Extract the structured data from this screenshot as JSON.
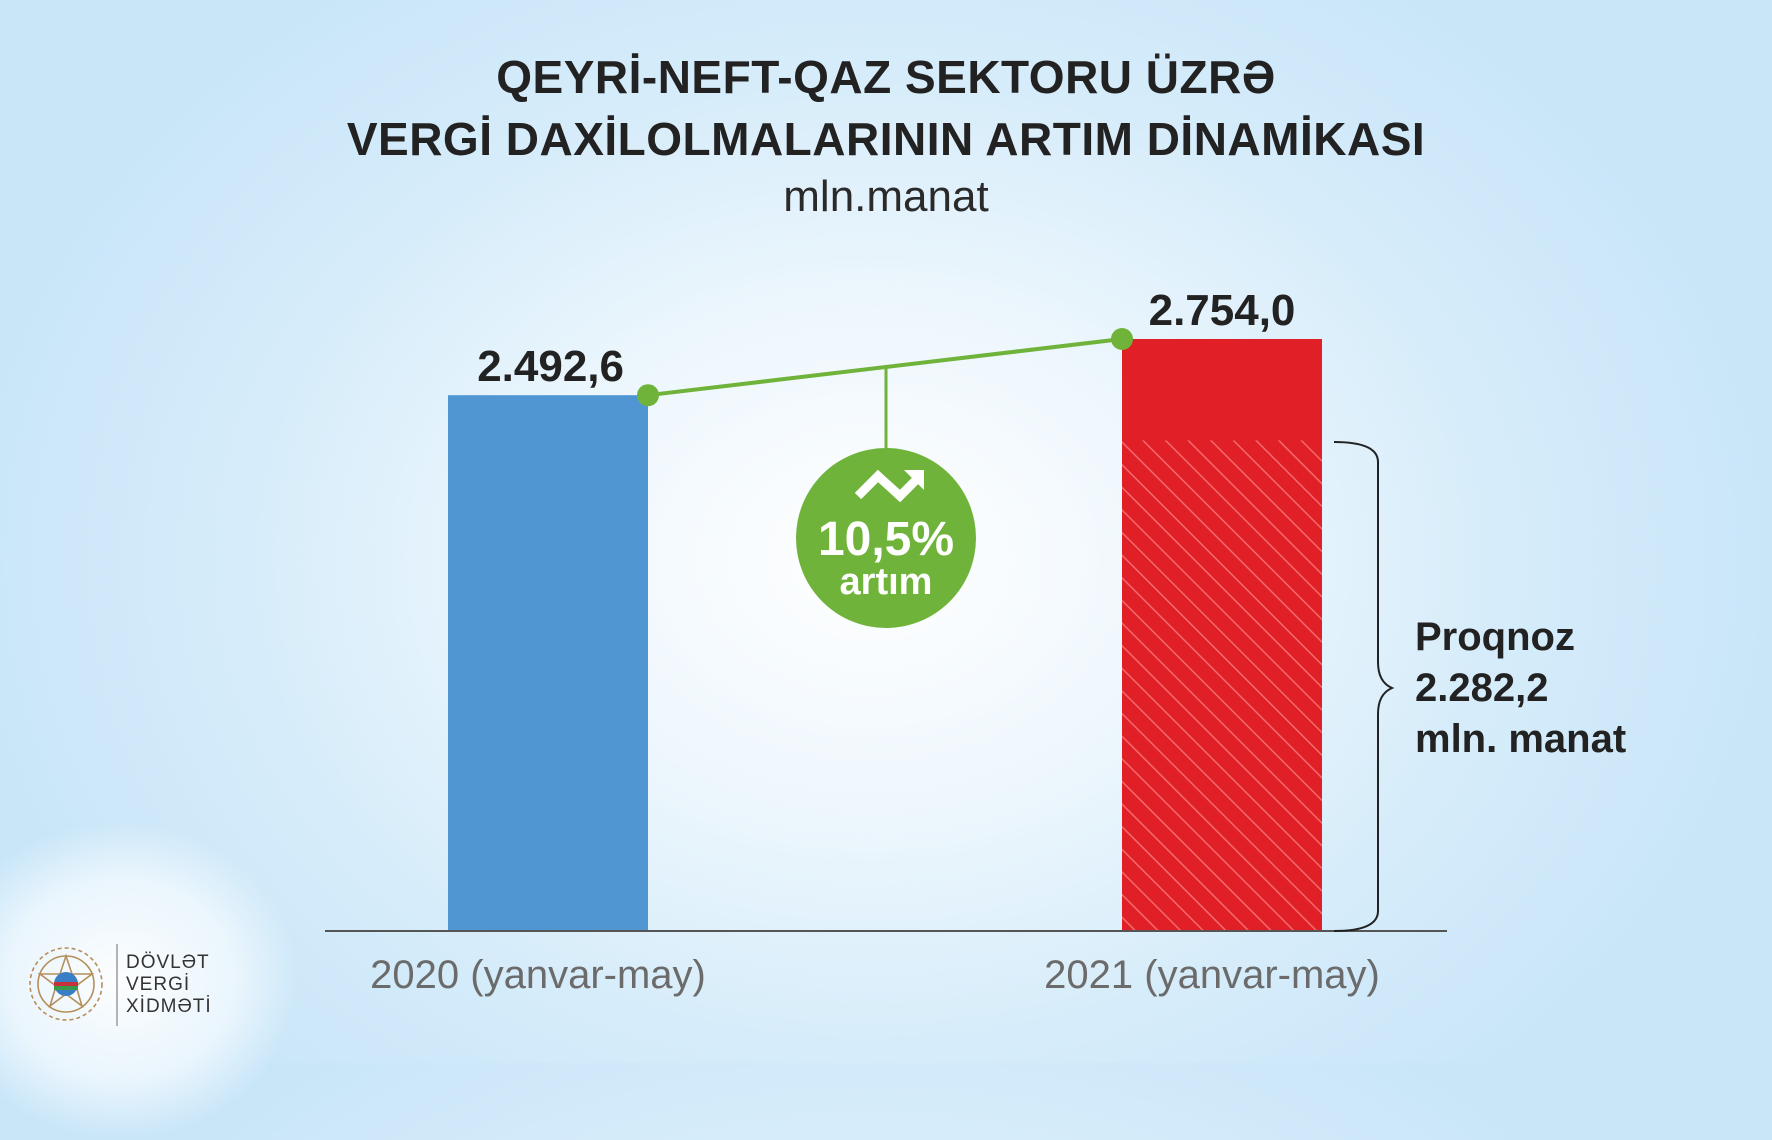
{
  "header": {
    "title_line1": "QEYRİ-NEFT-QAZ SEKTORU ÜZRƏ",
    "title_line2": "VERGİ DAXİLOLMALARININ ARTIM DİNAMİKASI",
    "unit": "mln.manat"
  },
  "growth_badge": {
    "value": "10,5%",
    "label": "artım",
    "color": "#6fb33b",
    "icon": "trend-up-arrow-icon"
  },
  "forecast": {
    "line1": "Proqnoz",
    "line2": "2.282,2",
    "line3": "mln. manat",
    "value": 2282.2
  },
  "logo": {
    "line1": "DÖVLƏT",
    "line2": "VERGİ",
    "line3": "XİDMƏTİ",
    "icon": "emblem-icon"
  },
  "chart_data": {
    "type": "bar",
    "title": "QEYRİ-NEFT-QAZ SEKTORU ÜZRƏ VERGİ DAXİLOLMALARININ ARTIM DİNAMİKASI",
    "subtitle": "mln.manat",
    "categories": [
      "2020 (yanvar-may)",
      "2021 (yanvar-may)"
    ],
    "values": [
      2492.6,
      2754.0
    ],
    "value_labels": [
      "2.492,6",
      "2.754,0"
    ],
    "colors": [
      "#4f96d3",
      "#e11f26"
    ],
    "forecast_2021": 2282.2,
    "ylim": [
      0,
      2754.0
    ],
    "grid": false,
    "legend": "none"
  }
}
